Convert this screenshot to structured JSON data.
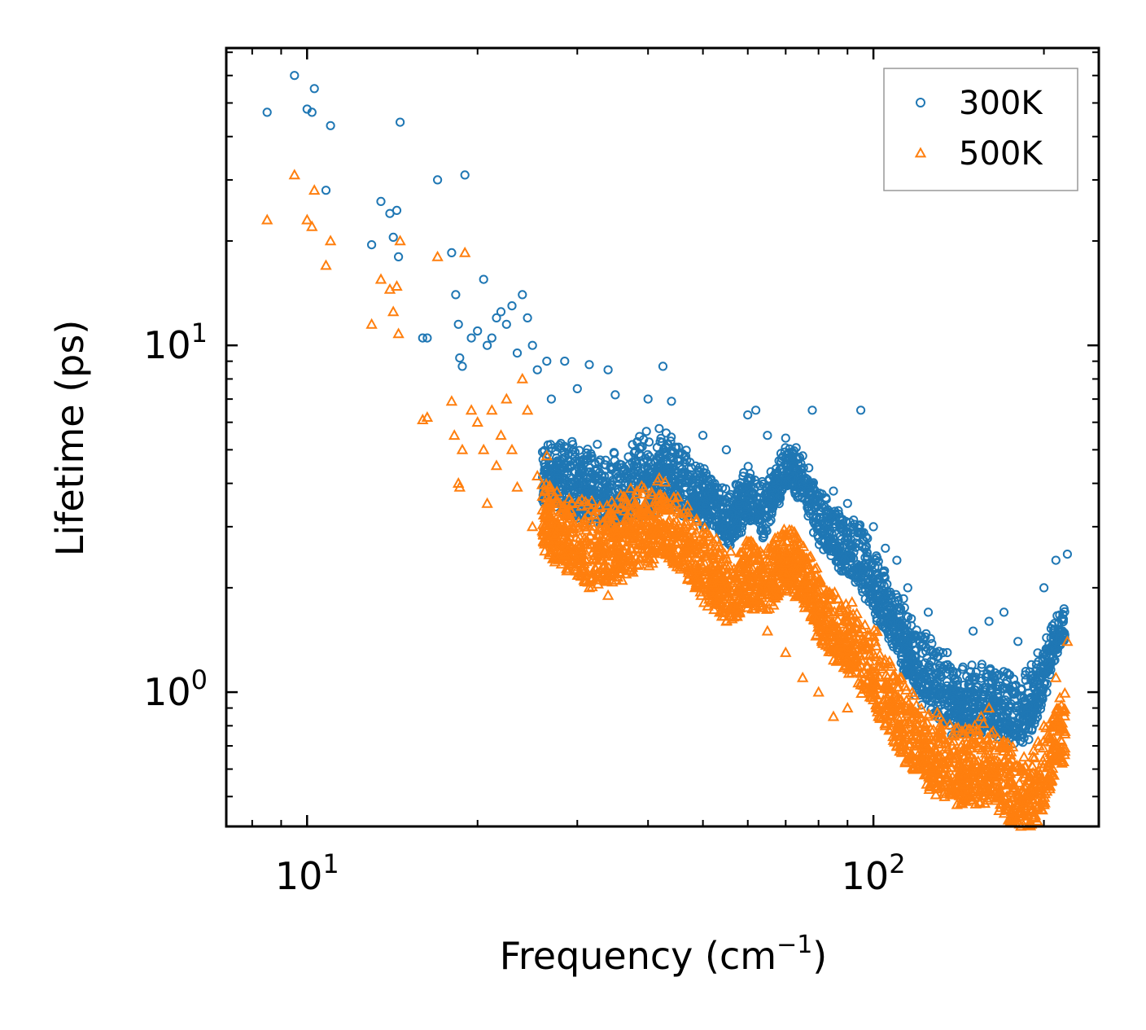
{
  "chart_data": {
    "type": "scatter",
    "xlabel": "Frequency (cm",
    "xlabel_sup": "−1",
    "xlabel_end": ")",
    "ylabel": "Lifetime (ps)",
    "xscale": "log",
    "yscale": "log",
    "xlim": [
      7.2,
      250
    ],
    "ylim": [
      0.41,
      72
    ],
    "x_tick_labels": [
      {
        "value": 10,
        "base": "10",
        "exp": "1"
      },
      {
        "value": 100,
        "base": "10",
        "exp": "2"
      }
    ],
    "y_tick_labels": [
      {
        "value": 1,
        "base": "10",
        "exp": "0"
      },
      {
        "value": 10,
        "base": "10",
        "exp": "1"
      }
    ],
    "legend": {
      "position": "top-right",
      "entries": [
        "300K",
        "500K"
      ]
    },
    "series": [
      {
        "name": "300K",
        "marker": "circle",
        "color": "#1f77b4",
        "points": [
          [
            8.5,
            47
          ],
          [
            9.5,
            60
          ],
          [
            10.0,
            48
          ],
          [
            10.2,
            47
          ],
          [
            10.3,
            55
          ],
          [
            10.8,
            28
          ],
          [
            11.0,
            43
          ],
          [
            13.0,
            19.5
          ],
          [
            13.5,
            26
          ],
          [
            14.0,
            24
          ],
          [
            14.2,
            20.5
          ],
          [
            14.4,
            24.5
          ],
          [
            14.5,
            18
          ],
          [
            14.6,
            44
          ],
          [
            16.0,
            10.5
          ],
          [
            16.3,
            10.5
          ],
          [
            17.0,
            30
          ],
          [
            18.0,
            18.5
          ],
          [
            18.3,
            14
          ],
          [
            18.5,
            11.5
          ],
          [
            18.6,
            9.2
          ],
          [
            18.8,
            8.7
          ],
          [
            19.0,
            31
          ],
          [
            19.5,
            10.5
          ],
          [
            20.0,
            11
          ],
          [
            20.5,
            15.5
          ],
          [
            20.8,
            10
          ],
          [
            21.2,
            10.5
          ],
          [
            21.6,
            12
          ],
          [
            22.0,
            12.5
          ],
          [
            22.5,
            11.5
          ],
          [
            23.0,
            13
          ],
          [
            23.5,
            9.5
          ],
          [
            24.0,
            14
          ],
          [
            24.5,
            12
          ],
          [
            25.0,
            10
          ],
          [
            25.5,
            8.5
          ],
          [
            26.5,
            9
          ],
          [
            27.0,
            7
          ],
          [
            28.5,
            9
          ],
          [
            30.0,
            7.5
          ],
          [
            31.5,
            8.8
          ],
          [
            34.0,
            8.5
          ],
          [
            35.0,
            7.2
          ],
          [
            40.0,
            7.0
          ],
          [
            42.5,
            8.7
          ],
          [
            44.0,
            6.9
          ],
          [
            50.0,
            5.5
          ],
          [
            55.0,
            5.0
          ],
          [
            60.0,
            6.3
          ],
          [
            62.0,
            6.5
          ],
          [
            65.0,
            5.5
          ],
          [
            70.0,
            5.4
          ],
          [
            75.0,
            4.8
          ],
          [
            78.0,
            6.5
          ],
          [
            85.0,
            3.8
          ],
          [
            90.0,
            3.5
          ],
          [
            95.0,
            6.5
          ],
          [
            100.0,
            3.0
          ],
          [
            105.0,
            2.6
          ],
          [
            110.0,
            2.4
          ],
          [
            115.0,
            2.0
          ],
          [
            125.0,
            1.7
          ],
          [
            135.0,
            1.3
          ],
          [
            145.0,
            1.0
          ],
          [
            150.0,
            1.5
          ],
          [
            160.0,
            1.6
          ],
          [
            170.0,
            1.7
          ],
          [
            180.0,
            1.4
          ],
          [
            190.0,
            1.2
          ],
          [
            200.0,
            2.0
          ],
          [
            210.0,
            2.4
          ],
          [
            220.0,
            2.5
          ]
        ],
        "band": [
          [
            26,
            5.2,
            1.5
          ],
          [
            28,
            5.2,
            1.5
          ],
          [
            30,
            5.4,
            1.7
          ],
          [
            32,
            5.1,
            1.6
          ],
          [
            34,
            4.9,
            1.6
          ],
          [
            36,
            5.2,
            1.7
          ],
          [
            38,
            5.5,
            1.7
          ],
          [
            40,
            5.6,
            1.7
          ],
          [
            42,
            5.8,
            1.7
          ],
          [
            44,
            5.5,
            1.6
          ],
          [
            46,
            5.2,
            1.6
          ],
          [
            48,
            4.9,
            1.5
          ],
          [
            50,
            4.6,
            1.5
          ],
          [
            52,
            4.2,
            1.4
          ],
          [
            54,
            3.9,
            1.4
          ],
          [
            56,
            3.8,
            1.4
          ],
          [
            58,
            4.1,
            1.4
          ],
          [
            60,
            4.4,
            1.4
          ],
          [
            62,
            4.3,
            1.4
          ],
          [
            64,
            4.0,
            1.4
          ],
          [
            66,
            4.4,
            1.35
          ],
          [
            68,
            4.8,
            1.35
          ],
          [
            70,
            5.0,
            1.3
          ],
          [
            72,
            5.1,
            1.3
          ],
          [
            74,
            4.9,
            1.35
          ],
          [
            76,
            4.6,
            1.35
          ],
          [
            78,
            4.2,
            1.4
          ],
          [
            80,
            3.8,
            1.4
          ],
          [
            84,
            3.5,
            1.4
          ],
          [
            88,
            3.3,
            1.45
          ],
          [
            92,
            3.1,
            1.45
          ],
          [
            96,
            2.9,
            1.5
          ],
          [
            100,
            2.6,
            1.5
          ],
          [
            104,
            2.3,
            1.5
          ],
          [
            108,
            2.1,
            1.55
          ],
          [
            112,
            1.9,
            1.6
          ],
          [
            116,
            1.7,
            1.6
          ],
          [
            120,
            1.55,
            1.6
          ],
          [
            125,
            1.45,
            1.6
          ],
          [
            130,
            1.35,
            1.6
          ],
          [
            135,
            1.25,
            1.6
          ],
          [
            140,
            1.2,
            1.55
          ],
          [
            145,
            1.2,
            1.55
          ],
          [
            150,
            1.2,
            1.55
          ],
          [
            160,
            1.2,
            1.55
          ],
          [
            170,
            1.15,
            1.55
          ],
          [
            180,
            1.1,
            1.55
          ],
          [
            190,
            1.15,
            1.55
          ],
          [
            200,
            1.4,
            1.45
          ],
          [
            210,
            1.7,
            1.35
          ],
          [
            218,
            1.8,
            1.3
          ]
        ]
      },
      {
        "name": "500K",
        "marker": "triangle",
        "color": "#ff7f0e",
        "points": [
          [
            8.5,
            23
          ],
          [
            9.5,
            31
          ],
          [
            10.0,
            23
          ],
          [
            10.2,
            22
          ],
          [
            10.3,
            28
          ],
          [
            10.8,
            17
          ],
          [
            11.0,
            20
          ],
          [
            13.0,
            11.5
          ],
          [
            13.5,
            15.5
          ],
          [
            14.0,
            14.5
          ],
          [
            14.2,
            12.5
          ],
          [
            14.4,
            14.8
          ],
          [
            14.5,
            10.8
          ],
          [
            14.6,
            20
          ],
          [
            16.0,
            6.1
          ],
          [
            16.3,
            6.2
          ],
          [
            17.0,
            18
          ],
          [
            18.0,
            6.9
          ],
          [
            18.2,
            5.5
          ],
          [
            18.5,
            4.0
          ],
          [
            18.6,
            3.9
          ],
          [
            18.8,
            5.0
          ],
          [
            19.0,
            18.5
          ],
          [
            19.5,
            6.5
          ],
          [
            20.0,
            6.0
          ],
          [
            20.5,
            5.0
          ],
          [
            20.8,
            3.5
          ],
          [
            21.2,
            6.5
          ],
          [
            21.6,
            4.5
          ],
          [
            22.0,
            5.5
          ],
          [
            22.5,
            7.0
          ],
          [
            23.0,
            5.0
          ],
          [
            23.5,
            3.9
          ],
          [
            24.0,
            8.0
          ],
          [
            24.5,
            6.5
          ],
          [
            25.0,
            3.0
          ],
          [
            25.5,
            4.2
          ],
          [
            26.5,
            4.8
          ],
          [
            27.0,
            3.5
          ],
          [
            28.5,
            2.5
          ],
          [
            30.0,
            2.4
          ],
          [
            31.5,
            2.0
          ],
          [
            34.0,
            1.9
          ],
          [
            36.0,
            2.1
          ],
          [
            40.0,
            2.6
          ],
          [
            45.0,
            2.3
          ],
          [
            50.0,
            2.0
          ],
          [
            55.0,
            1.6
          ],
          [
            60.0,
            1.8
          ],
          [
            65.0,
            1.5
          ],
          [
            70.0,
            1.3
          ],
          [
            75.0,
            1.1
          ],
          [
            80.0,
            1.0
          ],
          [
            85.0,
            0.85
          ],
          [
            90.0,
            0.9
          ],
          [
            95.0,
            1.05
          ],
          [
            100.0,
            0.95
          ],
          [
            105.0,
            0.8
          ],
          [
            110.0,
            0.7
          ],
          [
            120.0,
            0.62
          ],
          [
            130.0,
            0.72
          ],
          [
            140.0,
            0.66
          ],
          [
            145.0,
            0.58
          ],
          [
            150.0,
            0.78
          ],
          [
            155.0,
            0.85
          ],
          [
            160.0,
            0.9
          ],
          [
            170.0,
            0.72
          ],
          [
            175.0,
            0.55
          ],
          [
            180.0,
            0.5
          ],
          [
            185.0,
            0.5
          ],
          [
            190.0,
            0.58
          ],
          [
            200.0,
            0.8
          ],
          [
            210.0,
            1.1
          ],
          [
            220.0,
            1.4
          ]
        ],
        "band": [
          [
            26,
            4.2,
            1.6
          ],
          [
            28,
            3.8,
            1.6
          ],
          [
            30,
            3.6,
            1.7
          ],
          [
            32,
            3.5,
            1.7
          ],
          [
            34,
            3.5,
            1.7
          ],
          [
            36,
            3.7,
            1.7
          ],
          [
            38,
            3.9,
            1.7
          ],
          [
            40,
            4.0,
            1.7
          ],
          [
            42,
            4.2,
            1.7
          ],
          [
            44,
            3.9,
            1.65
          ],
          [
            46,
            3.6,
            1.65
          ],
          [
            48,
            3.3,
            1.6
          ],
          [
            50,
            3.0,
            1.6
          ],
          [
            52,
            2.8,
            1.55
          ],
          [
            54,
            2.6,
            1.55
          ],
          [
            56,
            2.5,
            1.55
          ],
          [
            58,
            2.6,
            1.55
          ],
          [
            60,
            2.8,
            1.55
          ],
          [
            62,
            2.7,
            1.55
          ],
          [
            64,
            2.6,
            1.5
          ],
          [
            66,
            2.7,
            1.5
          ],
          [
            68,
            2.9,
            1.5
          ],
          [
            70,
            3.0,
            1.5
          ],
          [
            72,
            3.0,
            1.5
          ],
          [
            74,
            2.8,
            1.5
          ],
          [
            76,
            2.6,
            1.5
          ],
          [
            78,
            2.4,
            1.5
          ],
          [
            80,
            2.2,
            1.55
          ],
          [
            84,
            2.0,
            1.55
          ],
          [
            88,
            1.85,
            1.6
          ],
          [
            92,
            1.75,
            1.6
          ],
          [
            96,
            1.65,
            1.65
          ],
          [
            100,
            1.5,
            1.65
          ],
          [
            104,
            1.35,
            1.65
          ],
          [
            108,
            1.2,
            1.65
          ],
          [
            112,
            1.1,
            1.65
          ],
          [
            116,
            1.0,
            1.65
          ],
          [
            120,
            0.95,
            1.65
          ],
          [
            125,
            0.9,
            1.65
          ],
          [
            130,
            0.85,
            1.65
          ],
          [
            135,
            0.82,
            1.65
          ],
          [
            140,
            0.8,
            1.65
          ],
          [
            145,
            0.78,
            1.65
          ],
          [
            150,
            0.8,
            1.65
          ],
          [
            160,
            0.8,
            1.65
          ],
          [
            170,
            0.75,
            1.7
          ],
          [
            180,
            0.66,
            1.7
          ],
          [
            190,
            0.66,
            1.75
          ],
          [
            200,
            0.8,
            1.7
          ],
          [
            210,
            0.95,
            1.6
          ],
          [
            218,
            1.0,
            1.55
          ]
        ]
      }
    ]
  }
}
